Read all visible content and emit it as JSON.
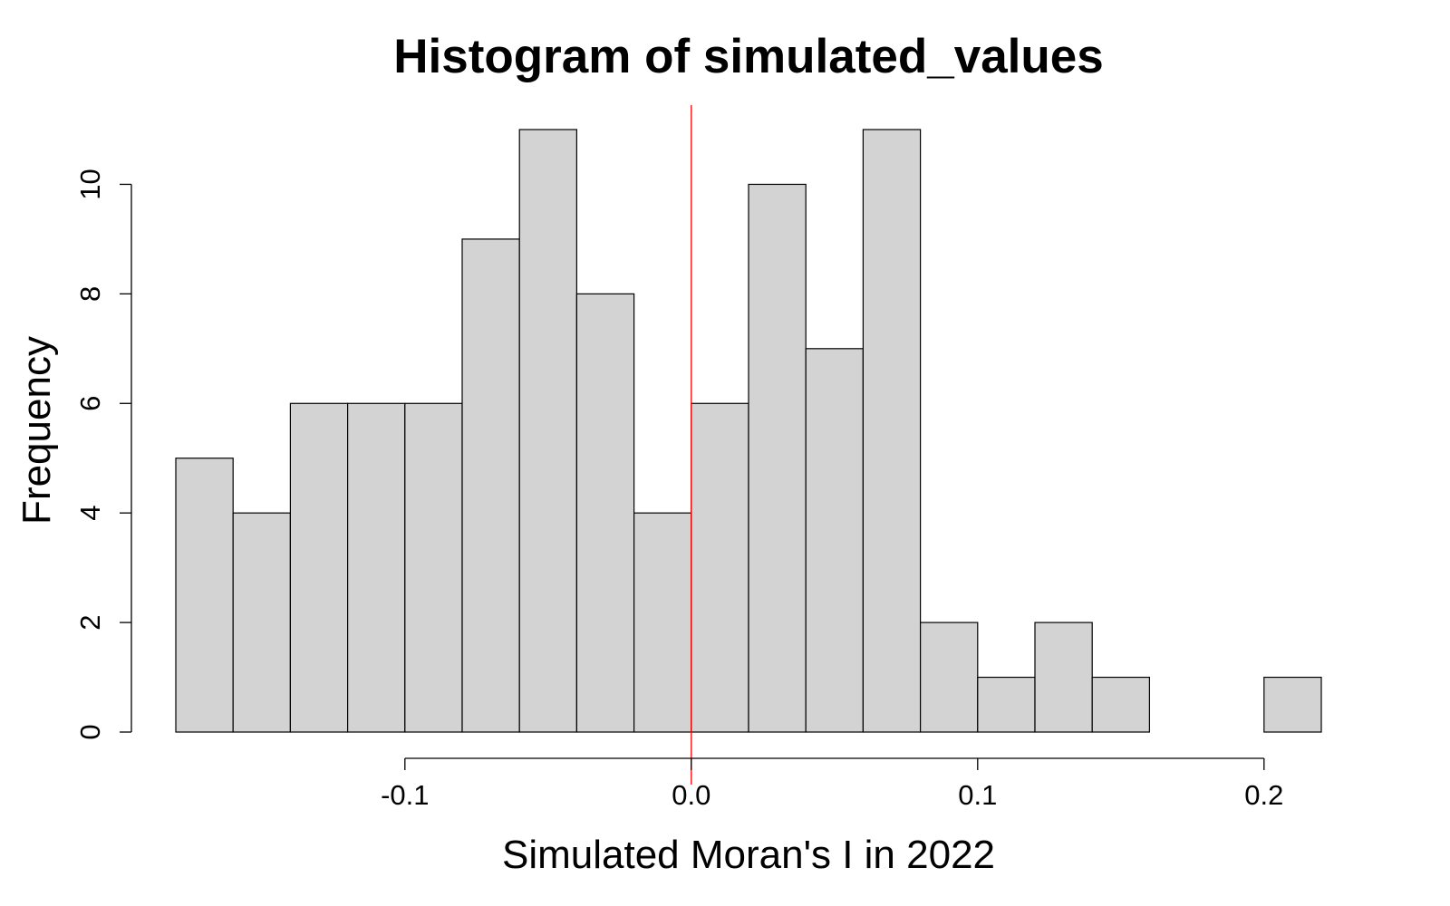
{
  "chart_data": {
    "type": "bar",
    "title": "Histogram of simulated_values",
    "xlabel": "Simulated Moran's I in 2022",
    "ylabel": "Frequency",
    "bin_edges": [
      -0.18,
      -0.16,
      -0.14,
      -0.12,
      -0.1,
      -0.08,
      -0.06,
      -0.04,
      -0.02,
      0.0,
      0.02,
      0.04,
      0.06,
      0.08,
      0.1,
      0.12,
      0.14,
      0.16,
      0.18,
      0.2,
      0.22
    ],
    "values": [
      5,
      4,
      6,
      6,
      6,
      9,
      11,
      8,
      4,
      6,
      10,
      7,
      11,
      2,
      1,
      2,
      1,
      0,
      0,
      1
    ],
    "xlim": [
      -0.18,
      0.22
    ],
    "ylim": [
      0,
      11
    ],
    "x_ticks": [
      -0.1,
      0.0,
      0.1,
      0.2
    ],
    "x_tick_labels": [
      "-0.1",
      "0.0",
      "0.1",
      "0.2"
    ],
    "y_ticks": [
      0,
      2,
      4,
      6,
      8,
      10
    ],
    "y_tick_labels": [
      "0",
      "2",
      "4",
      "6",
      "8",
      "10"
    ],
    "reference_line": {
      "x": 0.0,
      "color": "#ff0000"
    },
    "bar_fill": "#d3d3d3",
    "bar_stroke": "#000000",
    "grid": false,
    "legend": "none"
  }
}
